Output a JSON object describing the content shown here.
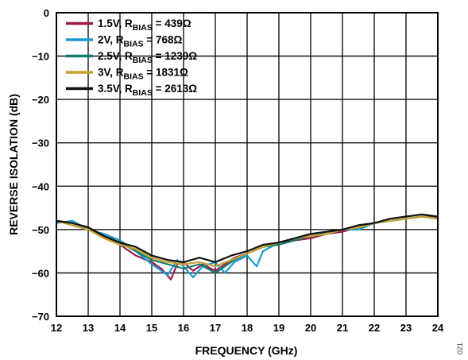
{
  "figure_code": "021",
  "chart_data": {
    "type": "line",
    "title": "",
    "xlabel": "FREQUENCY (GHz)",
    "ylabel": "REVERSE ISOLATION (dB)",
    "xlim": [
      12,
      24
    ],
    "ylim": [
      -70,
      0
    ],
    "xticks": [
      12,
      13,
      14,
      15,
      16,
      17,
      18,
      19,
      20,
      21,
      22,
      23,
      24
    ],
    "yticks": [
      0,
      -10,
      -20,
      -30,
      -40,
      -50,
      -60,
      -70
    ],
    "ytick_labels": [
      "0",
      "−10",
      "−20",
      "−30",
      "−40",
      "−50",
      "−60",
      "−70"
    ],
    "grid": true,
    "legend_position": "top-left",
    "series": [
      {
        "name": "1.5V, RBIAS = 439Ω",
        "legend": {
          "main": "1.5V, R",
          "sub": "BIAS",
          "rest": " = 439Ω"
        },
        "color": "#9b1b4b",
        "x": [
          12,
          12.5,
          13,
          13.5,
          14,
          14.5,
          15,
          15.3,
          15.6,
          15.8,
          16,
          16.3,
          16.6,
          17,
          17.3,
          17.6,
          18,
          18.5,
          19,
          19.5,
          20,
          20.5,
          21,
          21.5,
          22,
          22.5,
          23,
          23.5,
          24
        ],
        "y": [
          -48,
          -48.5,
          -49.5,
          -51.5,
          -53.5,
          -56,
          -57.5,
          -59,
          -61.5,
          -58,
          -57.5,
          -59.5,
          -58,
          -59.5,
          -58,
          -56.5,
          -55.5,
          -54,
          -53,
          -52.5,
          -52,
          -51,
          -50.5,
          -49.5,
          -48.5,
          -48,
          -47.5,
          -47,
          -47
        ]
      },
      {
        "name": "2V, RBIAS = 768Ω",
        "legend": {
          "main": "2V, R",
          "sub": "BIAS",
          "rest": " = 768Ω"
        },
        "color": "#1a9bd0",
        "x": [
          12,
          12.5,
          13,
          13.5,
          14,
          14.5,
          15,
          15.5,
          15.8,
          16,
          16.3,
          16.6,
          17,
          17.3,
          17.6,
          18,
          18.3,
          18.5,
          19,
          19.5,
          20,
          20.5,
          21,
          21.5,
          22,
          22.5,
          23,
          23.5,
          24
        ],
        "y": [
          -48.5,
          -48,
          -50,
          -51,
          -52.5,
          -55,
          -58,
          -60.5,
          -57,
          -58.5,
          -61,
          -58.5,
          -57.5,
          -60,
          -57.5,
          -56,
          -58.5,
          -55,
          -53,
          -52,
          -51,
          -51,
          -50,
          -50,
          -48.5,
          -48,
          -47.5,
          -47,
          -47.5
        ]
      },
      {
        "name": "2.5V, RBIAS = 1239Ω",
        "legend": {
          "main": "2.5V, R",
          "sub": "BIAS",
          "rest": " = 1239Ω"
        },
        "color": "#127b6e",
        "x": [
          12,
          12.5,
          13,
          13.5,
          14,
          14.5,
          15,
          15.5,
          16,
          16.5,
          17,
          17.3,
          17.6,
          18,
          18.5,
          19,
          19.5,
          20,
          20.5,
          21,
          21.5,
          22,
          22.5,
          23,
          23.5,
          24
        ],
        "y": [
          -48,
          -49,
          -50,
          -51.5,
          -53,
          -55,
          -57,
          -58,
          -59,
          -58,
          -60,
          -58.5,
          -57,
          -55.5,
          -54,
          -53.5,
          -52.5,
          -51.5,
          -51,
          -50,
          -49.5,
          -48.5,
          -48,
          -47.5,
          -47,
          -47.5
        ]
      },
      {
        "name": "3V, RBIAS = 1831Ω",
        "legend": {
          "main": "3V, R",
          "sub": "BIAS",
          "rest": " = 1831Ω"
        },
        "color": "#c8a030",
        "x": [
          12,
          12.5,
          13,
          13.5,
          14,
          14.5,
          15,
          15.5,
          16,
          16.5,
          17,
          17.5,
          18,
          18.5,
          19,
          19.5,
          20,
          20.5,
          21,
          21.5,
          22,
          22.5,
          23,
          23.5,
          24
        ],
        "y": [
          -48,
          -49,
          -50,
          -52,
          -53.5,
          -54.5,
          -56.5,
          -57.5,
          -58,
          -57.5,
          -58.5,
          -57,
          -55.5,
          -54,
          -53,
          -52,
          -51.5,
          -51,
          -50,
          -49.5,
          -48.5,
          -48,
          -47.5,
          -47,
          -47.5
        ]
      },
      {
        "name": "3.5V, RBIAS = 2613Ω",
        "legend": {
          "main": "3.5V, R",
          "sub": "BIAS",
          "rest": " = 2613Ω"
        },
        "color": "#111111",
        "x": [
          12,
          12.5,
          13,
          13.5,
          14,
          14.5,
          15,
          15.5,
          16,
          16.5,
          17,
          17.5,
          18,
          18.5,
          19,
          19.5,
          20,
          20.5,
          21,
          21.5,
          22,
          22.5,
          23,
          23.5,
          24
        ],
        "y": [
          -48,
          -48.5,
          -49.5,
          -51.5,
          -53,
          -54,
          -56,
          -57,
          -57.5,
          -56.5,
          -57.5,
          -56,
          -55,
          -53.5,
          -53,
          -52,
          -51,
          -50.5,
          -50,
          -49,
          -48.5,
          -47.5,
          -47,
          -46.5,
          -47
        ]
      }
    ]
  }
}
